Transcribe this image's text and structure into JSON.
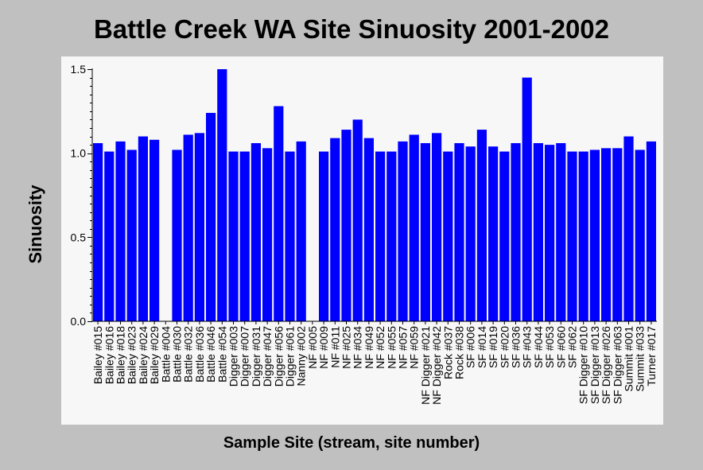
{
  "chart_data": {
    "type": "bar",
    "title": "Battle Creek WA Site Sinuosity 2001-2002",
    "xlabel": "Sample Site (stream, site number)",
    "ylabel": "Sinuosity",
    "ylim": [
      0,
      1.5
    ],
    "yticks": [
      "0.0",
      "0.5",
      "1.0",
      "1.5"
    ],
    "grid": false,
    "bar_color": "#0000ff",
    "categories": [
      "Bailey #015",
      "Bailey #016",
      "Bailey #018",
      "Bailey #023",
      "Bailey #024",
      "Bailey #029",
      "Battle #004",
      "Battle #030",
      "Battle #032",
      "Battle #036",
      "Battle #046",
      "Battle #054",
      "Digger #003",
      "Digger #007",
      "Digger #031",
      "Digger #047",
      "Digger #056",
      "Digger #061",
      "Nanny #002",
      "NF #005",
      "NF #009",
      "NF #011",
      "NF #025",
      "NF #034",
      "NF #049",
      "NF #052",
      "NF #055",
      "NF #057",
      "NF #059",
      "NF Digger #021",
      "NF Digger #042",
      "Rock #037",
      "Rock #038",
      "SF #006",
      "SF #014",
      "SF #019",
      "SF #020",
      "SF #036",
      "SF #043",
      "SF #044",
      "SF #053",
      "SF #060",
      "SF #062",
      "SF Digger #010",
      "SF Digger #013",
      "SF Digger #026",
      "SF Digger #063",
      "Summit #001",
      "Summit #033",
      "Turner #017"
    ],
    "values": [
      1.06,
      1.01,
      1.07,
      1.02,
      1.1,
      1.08,
      0.0,
      1.02,
      1.11,
      1.12,
      1.24,
      1.5,
      1.01,
      1.01,
      1.06,
      1.03,
      1.28,
      1.01,
      1.07,
      0.0,
      1.01,
      1.09,
      1.14,
      1.2,
      1.09,
      1.01,
      1.01,
      1.07,
      1.11,
      1.06,
      1.12,
      1.01,
      1.06,
      1.04,
      1.14,
      1.04,
      1.01,
      1.06,
      1.45,
      1.06,
      1.05,
      1.06,
      1.01,
      1.01,
      1.02,
      1.03,
      1.03,
      1.1,
      1.02,
      1.07
    ]
  }
}
